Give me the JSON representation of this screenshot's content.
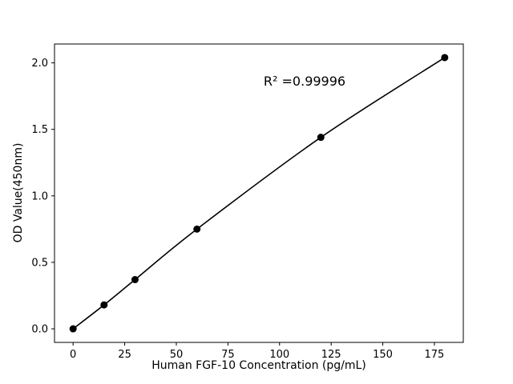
{
  "chart_data": {
    "type": "line",
    "title": "",
    "xlabel": "Human FGF-10 Concentration (pg/mL)",
    "ylabel": "OD Value(450nm)",
    "annotation": "R² =0.99996",
    "x": [
      0,
      15,
      30,
      60,
      120,
      180
    ],
    "y": [
      0.0,
      0.18,
      0.37,
      0.75,
      1.44,
      2.04
    ],
    "xlim": [
      -9,
      189
    ],
    "ylim": [
      -0.102,
      2.142
    ],
    "xticks": [
      {
        "value": 0,
        "label": "0"
      },
      {
        "value": 25,
        "label": "25"
      },
      {
        "value": 50,
        "label": "50"
      },
      {
        "value": 75,
        "label": "75"
      },
      {
        "value": 100,
        "label": "100"
      },
      {
        "value": 125,
        "label": "125"
      },
      {
        "value": 150,
        "label": "150"
      },
      {
        "value": 175,
        "label": "175"
      }
    ],
    "yticks": [
      {
        "value": 0.0,
        "label": "0.0"
      },
      {
        "value": 0.5,
        "label": "0.5"
      },
      {
        "value": 1.0,
        "label": "1.0"
      },
      {
        "value": 1.5,
        "label": "1.5"
      },
      {
        "value": 2.0,
        "label": "2.0"
      }
    ],
    "line_color": "#000000",
    "marker_color": "#000000",
    "marker_size": 4.5,
    "background_color": "#ffffff",
    "grid": false,
    "legend": null
  }
}
